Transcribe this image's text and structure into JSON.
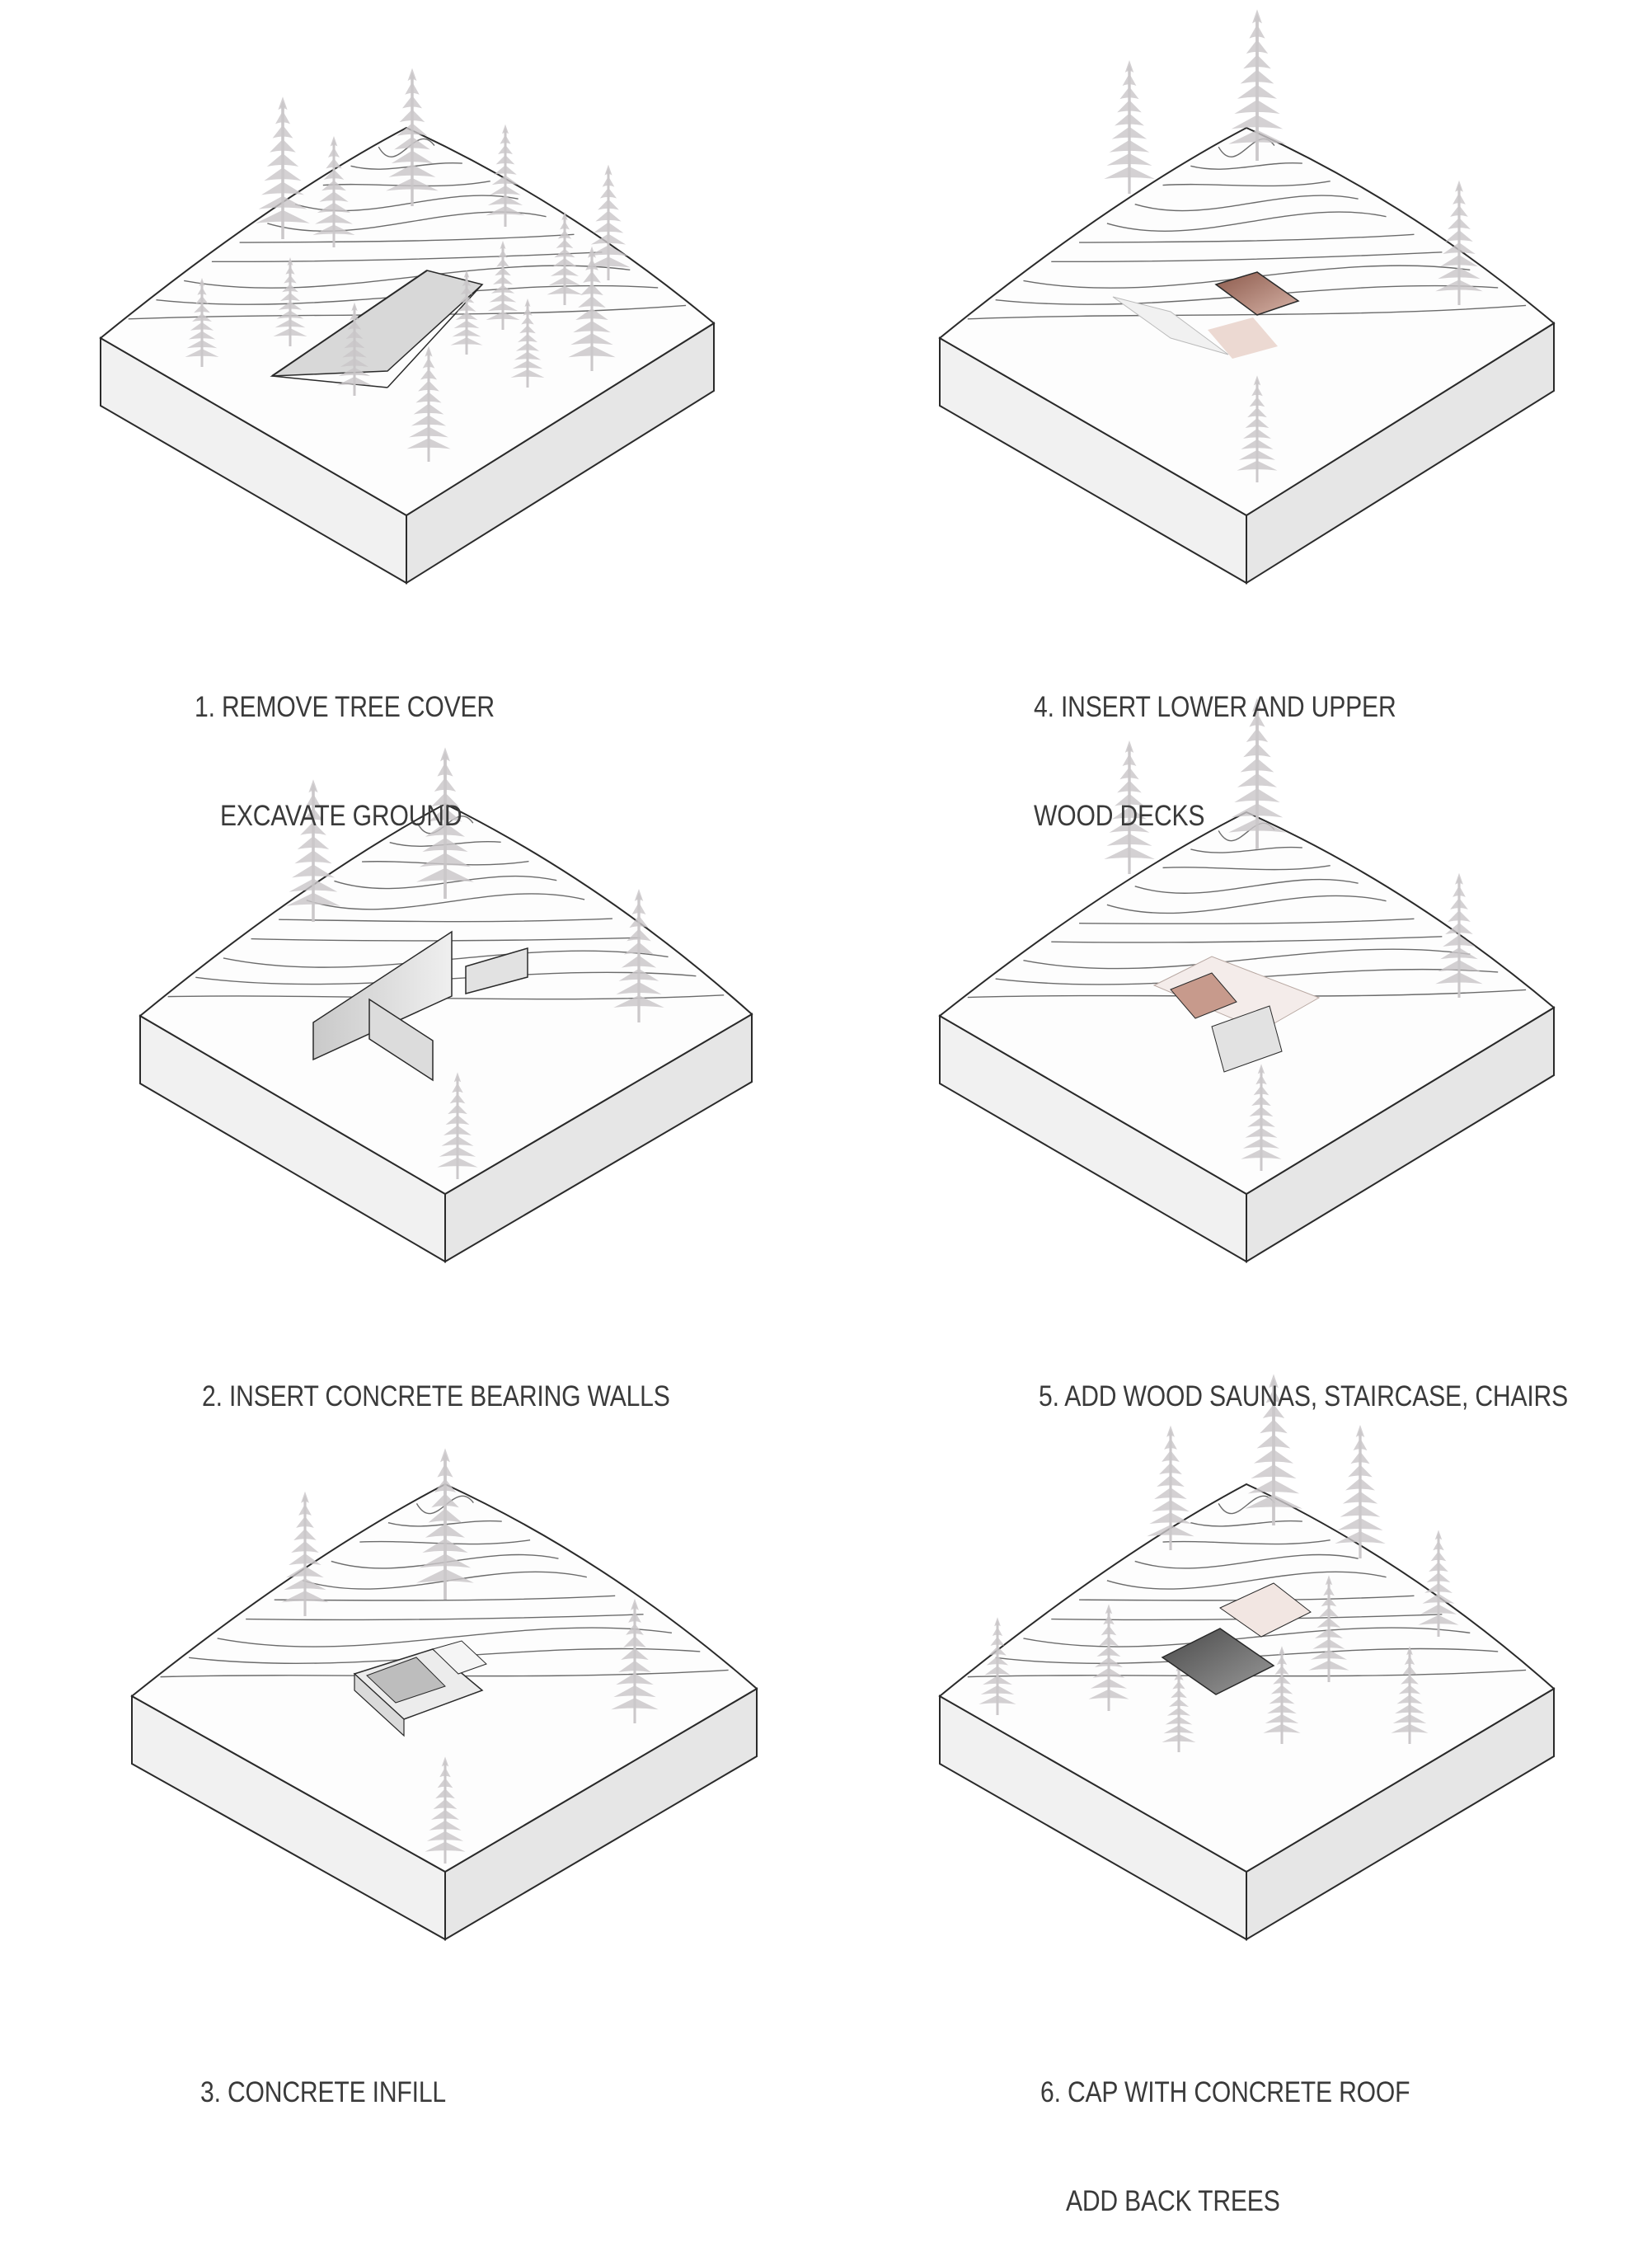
{
  "steps": [
    {
      "number": "1",
      "lines": [
        "1. REMOVE TREE COVER",
        "EXCAVATE GROUND"
      ]
    },
    {
      "number": "2",
      "lines": [
        "2. INSERT CONCRETE BEARING WALLS"
      ]
    },
    {
      "number": "3",
      "lines": [
        "3. CONCRETE INFILL"
      ]
    },
    {
      "number": "4",
      "lines": [
        "4. INSERT LOWER AND UPPER",
        "WOOD DECKS"
      ]
    },
    {
      "number": "5",
      "lines": [
        "5. ADD WOOD SAUNAS, STAIRCASE, CHAIRS"
      ]
    },
    {
      "number": "6",
      "lines": [
        "6. CAP WITH CONCRETE ROOF",
        "ADD BACK TREES"
      ]
    }
  ],
  "colors": {
    "background": "#ffffff",
    "block_top": "#fdfdfd",
    "block_left": "#f1f1f1",
    "block_right": "#e6e6e6",
    "outline": "#2a2a2a",
    "contour": "#3a3a3a",
    "tree": "#c9c6c8",
    "wall": "#d6d6d6",
    "wood_deck": "#a8766a",
    "roof": "#6a6a6a",
    "caption": "#3a3a3a"
  }
}
